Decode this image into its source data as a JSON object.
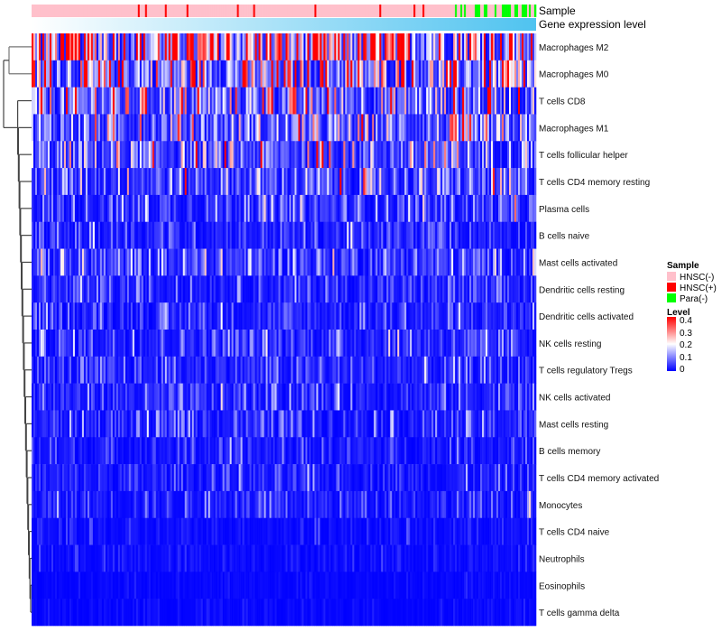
{
  "chart_data": {
    "type": "heatmap",
    "title": "",
    "annotations": [
      {
        "name": "Sample",
        "levels": [
          "HNSC(-)",
          "HNSC(+)",
          "Para(-)"
        ],
        "colors": [
          "#FFC0CB",
          "#FF0000",
          "#00FF00"
        ]
      },
      {
        "name": "Gene expression level",
        "gradient": [
          "#FFFFFF",
          "#4FC3F0"
        ]
      }
    ],
    "rows": [
      {
        "label": "Macrophages M2",
        "mean_level": 0.25
      },
      {
        "label": "Macrophages M0",
        "mean_level": 0.15
      },
      {
        "label": "T cells CD8",
        "mean_level": 0.11
      },
      {
        "label": "Macrophages M1",
        "mean_level": 0.09
      },
      {
        "label": "T cells follicular helper",
        "mean_level": 0.08
      },
      {
        "label": "T cells CD4 memory resting",
        "mean_level": 0.07
      },
      {
        "label": "Plasma cells",
        "mean_level": 0.05
      },
      {
        "label": "B cells naive",
        "mean_level": 0.035
      },
      {
        "label": "Mast cells activated",
        "mean_level": 0.06
      },
      {
        "label": "Dendritic cells resting",
        "mean_level": 0.035
      },
      {
        "label": "Dendritic cells activated",
        "mean_level": 0.035
      },
      {
        "label": "NK cells resting",
        "mean_level": 0.045
      },
      {
        "label": "T cells regulatory  Tregs",
        "mean_level": 0.035
      },
      {
        "label": "NK cells activated",
        "mean_level": 0.035
      },
      {
        "label": "Mast cells resting",
        "mean_level": 0.035
      },
      {
        "label": "B cells memory",
        "mean_level": 0.025
      },
      {
        "label": "T cells CD4 memory activated",
        "mean_level": 0.025
      },
      {
        "label": "Monocytes",
        "mean_level": 0.03
      },
      {
        "label": "T cells CD4 naive",
        "mean_level": 0.012
      },
      {
        "label": "Neutrophils",
        "mean_level": 0.012
      },
      {
        "label": "Eosinophils",
        "mean_level": 0.006
      },
      {
        "label": "T cells gamma delta",
        "mean_level": 0.006
      }
    ],
    "n_samples": 280,
    "color_scale": {
      "title": "Level",
      "range": [
        0,
        0.4
      ],
      "ticks": [
        "0.4",
        "0.3",
        "0.2",
        "0.1",
        "0"
      ],
      "low": "#0000FF",
      "mid": "#FFFFFF",
      "high": "#FF0000"
    },
    "legend_position": "right"
  }
}
